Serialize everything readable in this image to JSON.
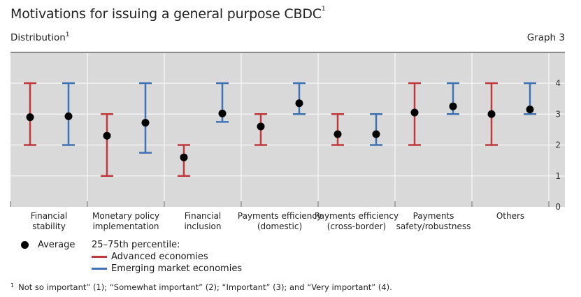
{
  "header": {
    "title": "Motivations for issuing a general purpose CBDC",
    "title_footnote_mark": "1",
    "subtitle": "Distribution",
    "subtitle_footnote_mark": "1",
    "graph_label": "Graph 3"
  },
  "legend": {
    "average_label": "Average",
    "percentile_title": "25–75th percentile:",
    "series": [
      {
        "name": "Advanced economies",
        "color": "#c0393b"
      },
      {
        "name": "Emerging market economies",
        "color": "#3f72b5"
      }
    ]
  },
  "footnote": {
    "mark": "1",
    "text": "Not so important” (1); “Somewhat important” (2); “Important” (3); and “Very important” (4)."
  },
  "chart_data": {
    "type": "scatter",
    "subtype": "error-bar",
    "title": "Motivations for issuing a general purpose CBDC",
    "subtitle": "Distribution",
    "categories": [
      [
        "Financial",
        "stability"
      ],
      [
        "Monetary policy",
        "implementation"
      ],
      [
        "Financial",
        "inclusion"
      ],
      [
        "Payments efficiency",
        "(domestic)"
      ],
      [
        "Payments efficiency",
        "(cross-border)"
      ],
      [
        "Payments",
        "safety/robustness"
      ],
      [
        "Others"
      ]
    ],
    "y_ticks": [
      0,
      1,
      2,
      3,
      4
    ],
    "ylim": [
      0,
      4.5
    ],
    "y_axis_position": "right",
    "grid": true,
    "legend_position": "bottom-left",
    "series": [
      {
        "name": "Advanced economies",
        "color": "#c0393b",
        "average": [
          2.9,
          2.3,
          1.6,
          2.6,
          2.35,
          3.05,
          3.0
        ],
        "p25": [
          2,
          1,
          1,
          2,
          2,
          2,
          2
        ],
        "p75": [
          4,
          3,
          2,
          3,
          3,
          4,
          4
        ]
      },
      {
        "name": "Emerging market economies",
        "color": "#3f72b5",
        "average": [
          2.93,
          2.72,
          3.02,
          3.35,
          2.35,
          3.25,
          3.15
        ],
        "p25": [
          2,
          1.75,
          2.75,
          3,
          2,
          3,
          3
        ],
        "p75": [
          4,
          4,
          4,
          4,
          3,
          4,
          4
        ]
      }
    ]
  }
}
